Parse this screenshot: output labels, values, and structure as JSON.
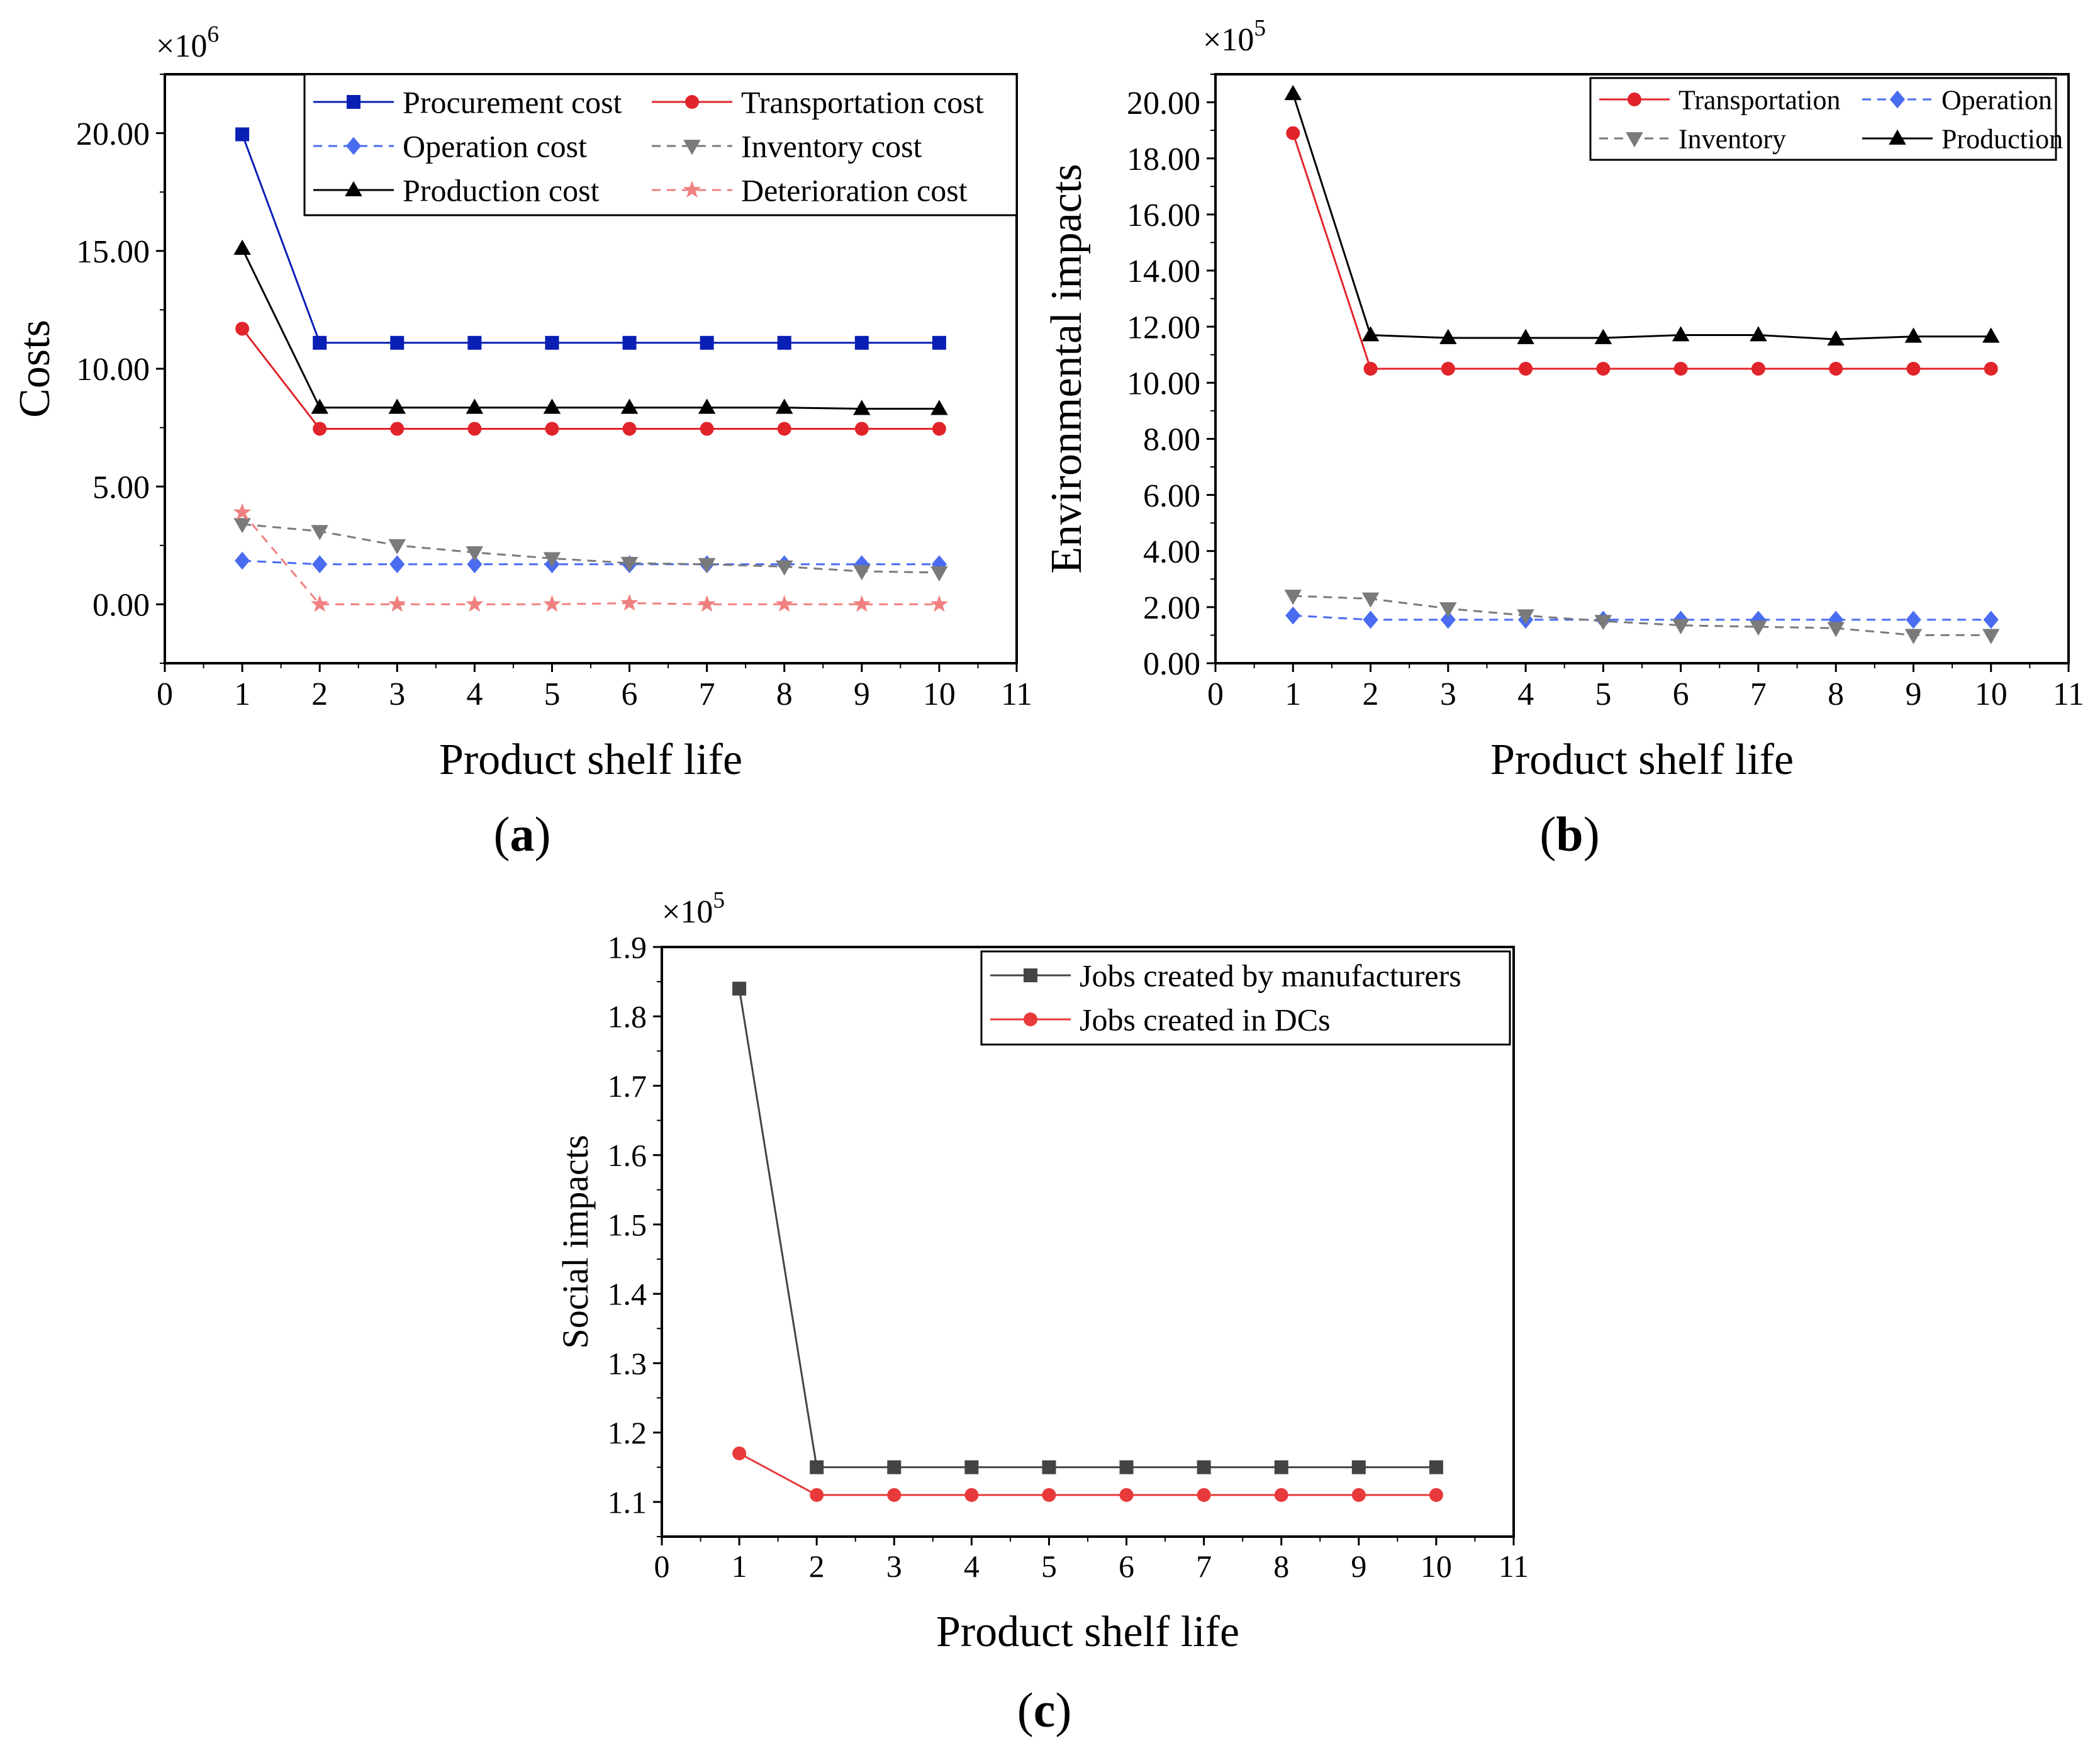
{
  "figure": {
    "panel_labels": [
      "a",
      "b",
      "c"
    ]
  },
  "colors": {
    "blue": "#0a1fb4",
    "red": "#e0242a",
    "black": "#000000",
    "light_blue": "#4a6cf0",
    "gray": "#7a7a7a",
    "pink": "#f08080",
    "dark_gray": "#444444",
    "jobs_red": "#e83a3a"
  },
  "chart_data": [
    {
      "id": "a",
      "type": "line",
      "xlabel": "Product shelf life",
      "ylabel": "Costs",
      "multiplier": "×10",
      "exponent": "6",
      "xlim": [
        0,
        11
      ],
      "ylim": [
        -2.5,
        22.5
      ],
      "xticks": [
        0,
        1,
        2,
        3,
        4,
        5,
        6,
        7,
        8,
        9,
        10,
        11
      ],
      "yticks": [
        0,
        5,
        10,
        15,
        20
      ],
      "ytick_labels": [
        "0.00",
        "5.00",
        "10.00",
        "15.00",
        "20.00"
      ],
      "x": [
        1,
        2,
        3,
        4,
        5,
        6,
        7,
        8,
        9,
        10
      ],
      "legend": {
        "placement": "top-right",
        "columns": 2
      },
      "series": [
        {
          "name": "Procurement cost",
          "values": [
            19.95,
            11.1,
            11.1,
            11.1,
            11.1,
            11.1,
            11.1,
            11.1,
            11.1,
            11.1
          ],
          "color": "blue",
          "marker": "square",
          "dash": "solid"
        },
        {
          "name": "Transportation cost",
          "values": [
            11.7,
            7.45,
            7.45,
            7.45,
            7.45,
            7.45,
            7.45,
            7.45,
            7.45,
            7.45
          ],
          "color": "red",
          "marker": "circle",
          "dash": "solid"
        },
        {
          "name": "Operation cost",
          "values": [
            1.85,
            1.7,
            1.7,
            1.7,
            1.7,
            1.7,
            1.7,
            1.7,
            1.7,
            1.7
          ],
          "color": "light_blue",
          "marker": "diamond",
          "dash": "dashed"
        },
        {
          "name": "Inventory cost",
          "values": [
            3.4,
            3.1,
            2.5,
            2.2,
            1.95,
            1.75,
            1.7,
            1.6,
            1.4,
            1.35
          ],
          "color": "gray",
          "marker": "triangle-down",
          "dash": "dashed"
        },
        {
          "name": "Production cost",
          "values": [
            15.1,
            8.35,
            8.35,
            8.35,
            8.35,
            8.35,
            8.35,
            8.35,
            8.3,
            8.3
          ],
          "color": "black",
          "marker": "triangle-up",
          "dash": "solid"
        },
        {
          "name": "Deterioration cost",
          "values": [
            3.9,
            0.0,
            0.0,
            0.0,
            0.0,
            0.05,
            0.0,
            0.0,
            0.0,
            0.0
          ],
          "color": "pink",
          "marker": "star",
          "dash": "dashed"
        }
      ]
    },
    {
      "id": "b",
      "type": "line",
      "xlabel": "Product shelf life",
      "ylabel": "Environmental impacts",
      "multiplier": "×10",
      "exponent": "5",
      "xlim": [
        0,
        11
      ],
      "ylim": [
        0,
        21
      ],
      "xticks": [
        0,
        1,
        2,
        3,
        4,
        5,
        6,
        7,
        8,
        9,
        10,
        11
      ],
      "yticks": [
        0,
        2,
        4,
        6,
        8,
        10,
        12,
        14,
        16,
        18,
        20
      ],
      "ytick_labels": [
        "0.00",
        "2.00",
        "4.00",
        "6.00",
        "8.00",
        "10.00",
        "12.00",
        "14.00",
        "16.00",
        "18.00",
        "20.00"
      ],
      "x": [
        1,
        2,
        3,
        4,
        5,
        6,
        7,
        8,
        9,
        10
      ],
      "legend": {
        "placement": "top-right",
        "columns": 2
      },
      "series": [
        {
          "name": "Transportation",
          "values": [
            18.9,
            10.5,
            10.5,
            10.5,
            10.5,
            10.5,
            10.5,
            10.5,
            10.5,
            10.5
          ],
          "color": "red",
          "marker": "circle",
          "dash": "solid"
        },
        {
          "name": "Operation",
          "values": [
            1.7,
            1.55,
            1.55,
            1.55,
            1.55,
            1.55,
            1.55,
            1.55,
            1.55,
            1.55
          ],
          "color": "light_blue",
          "marker": "diamond",
          "dash": "dashed"
        },
        {
          "name": "Inventory",
          "values": [
            2.4,
            2.3,
            1.95,
            1.7,
            1.5,
            1.35,
            1.3,
            1.25,
            1.0,
            1.0
          ],
          "color": "gray",
          "marker": "triangle-down",
          "dash": "dashed"
        },
        {
          "name": "Production",
          "values": [
            20.3,
            11.7,
            11.6,
            11.6,
            11.6,
            11.7,
            11.7,
            11.55,
            11.65,
            11.65
          ],
          "color": "black",
          "marker": "triangle-up",
          "dash": "solid"
        }
      ]
    },
    {
      "id": "c",
      "type": "line",
      "xlabel": "Product shelf life",
      "ylabel": "Social impacts",
      "multiplier": "×10",
      "exponent": "5",
      "xlim": [
        0,
        11
      ],
      "ylim": [
        1.05,
        1.9
      ],
      "xticks": [
        0,
        1,
        2,
        3,
        4,
        5,
        6,
        7,
        8,
        9,
        10,
        11
      ],
      "yticks": [
        1.1,
        1.2,
        1.3,
        1.4,
        1.5,
        1.6,
        1.7,
        1.8,
        1.9
      ],
      "ytick_labels": [
        "1.1",
        "1.2",
        "1.3",
        "1.4",
        "1.5",
        "1.6",
        "1.7",
        "1.8",
        "1.9"
      ],
      "x": [
        1,
        2,
        3,
        4,
        5,
        6,
        7,
        8,
        9,
        10
      ],
      "legend": {
        "placement": "top-right",
        "columns": 1
      },
      "series": [
        {
          "name": "Jobs created by manufacturers",
          "values": [
            1.84,
            1.15,
            1.15,
            1.15,
            1.15,
            1.15,
            1.15,
            1.15,
            1.15,
            1.15
          ],
          "color": "dark_gray",
          "marker": "square",
          "dash": "solid"
        },
        {
          "name": "Jobs created in DCs",
          "values": [
            1.17,
            1.11,
            1.11,
            1.11,
            1.11,
            1.11,
            1.11,
            1.11,
            1.11,
            1.11
          ],
          "color": "jobs_red",
          "marker": "circle",
          "dash": "solid"
        }
      ]
    }
  ]
}
